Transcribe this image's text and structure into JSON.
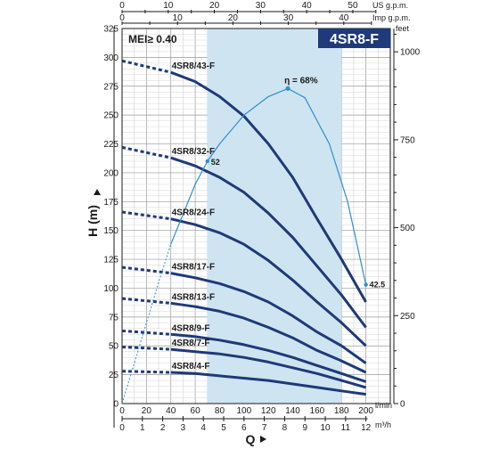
{
  "chart_data": {
    "type": "line",
    "badge": "4SR8-F",
    "mei": "MEI≥ 0.40",
    "xlabel": "Q",
    "ylabel": "H (m)",
    "x_unit": "l/min",
    "x_unit2": "m³/h",
    "top_unit1": "US g.p.m.",
    "top_unit2": "Imp g.p.m.",
    "right_unit": "feet",
    "xlim": [
      0,
      220
    ],
    "ylim": [
      0,
      325
    ],
    "x_ticks": [
      "0",
      "20",
      "40",
      "60",
      "80",
      "100",
      "120",
      "140",
      "160",
      "180",
      "200"
    ],
    "y_ticks": [
      "0",
      "25",
      "50",
      "75",
      "100",
      "125",
      "150",
      "175",
      "200",
      "225",
      "250",
      "275",
      "300",
      "325"
    ],
    "m3h_ticks": [
      "0",
      "1",
      "2",
      "3",
      "4",
      "5",
      "6",
      "7",
      "8",
      "9",
      "10",
      "11",
      "12"
    ],
    "usgpm_ticks": [
      "0",
      "10",
      "20",
      "30",
      "40",
      "50"
    ],
    "impgpm_ticks": [
      "0",
      "10",
      "20",
      "30",
      "40"
    ],
    "feet_ticks": [
      "0",
      "250",
      "500",
      "750",
      "1000"
    ],
    "recommended_range": [
      70,
      180
    ],
    "series": [
      {
        "name": "4SR8/43-F",
        "dashed": {
          "x": [
            0,
            40
          ],
          "y": [
            297,
            287
          ]
        },
        "solid": {
          "x": [
            40,
            60,
            80,
            100,
            120,
            140,
            160,
            180,
            200
          ],
          "y": [
            287,
            279,
            266,
            249,
            225,
            196,
            160,
            125,
            88
          ]
        }
      },
      {
        "name": "4SR8/32-F",
        "dashed": {
          "x": [
            0,
            40
          ],
          "y": [
            222,
            213
          ]
        },
        "solid": {
          "x": [
            40,
            60,
            80,
            100,
            120,
            140,
            160,
            180,
            200
          ],
          "y": [
            213,
            206,
            196,
            183,
            165,
            144,
            119,
            94,
            66
          ]
        }
      },
      {
        "name": "4SR8/24-F",
        "dashed": {
          "x": [
            0,
            40
          ],
          "y": [
            166,
            160
          ]
        },
        "solid": {
          "x": [
            40,
            60,
            80,
            100,
            120,
            140,
            160,
            180,
            200
          ],
          "y": [
            160,
            155,
            148,
            138,
            124,
            107,
            88,
            70,
            50
          ]
        }
      },
      {
        "name": "4SR8/17-F",
        "dashed": {
          "x": [
            0,
            40
          ],
          "y": [
            118,
            113
          ]
        },
        "solid": {
          "x": [
            40,
            60,
            80,
            100,
            120,
            140,
            160,
            180,
            200
          ],
          "y": [
            113,
            109,
            104,
            97,
            88,
            76,
            62,
            50,
            35
          ]
        }
      },
      {
        "name": "4SR8/13-F",
        "dashed": {
          "x": [
            0,
            40
          ],
          "y": [
            91,
            87
          ]
        },
        "solid": {
          "x": [
            40,
            60,
            80,
            100,
            120,
            140,
            160,
            180,
            200
          ],
          "y": [
            87,
            84,
            80,
            74,
            66,
            57,
            46,
            37,
            27
          ]
        }
      },
      {
        "name": "4SR8/9-F",
        "dashed": {
          "x": [
            0,
            40
          ],
          "y": [
            63,
            60
          ]
        },
        "solid": {
          "x": [
            40,
            60,
            80,
            100,
            120,
            140,
            160,
            180,
            200
          ],
          "y": [
            60,
            58,
            55,
            51,
            46,
            40,
            33,
            26,
            19
          ]
        }
      },
      {
        "name": "4SR8/7-F",
        "dashed": {
          "x": [
            0,
            40
          ],
          "y": [
            49,
            47
          ]
        },
        "solid": {
          "x": [
            40,
            60,
            80,
            100,
            120,
            140,
            160,
            180,
            200
          ],
          "y": [
            47,
            45,
            43,
            40,
            36,
            31,
            26,
            20,
            14
          ]
        }
      },
      {
        "name": "4SR8/4-F",
        "dashed": {
          "x": [
            0,
            40
          ],
          "y": [
            28,
            27
          ]
        },
        "solid": {
          "x": [
            40,
            60,
            80,
            100,
            120,
            140,
            160,
            180,
            200
          ],
          "y": [
            27,
            26,
            24,
            22,
            20,
            17,
            14,
            11,
            8
          ]
        }
      }
    ],
    "efficiency": {
      "dashed": {
        "x": [
          0,
          10,
          20,
          30,
          40
        ],
        "y": [
          0,
          35,
          70,
          105,
          138
        ]
      },
      "solid": {
        "x": [
          40,
          60,
          70,
          80,
          100,
          120,
          136,
          150,
          170,
          185,
          200
        ],
        "y": [
          138,
          190,
          210,
          225,
          250,
          266,
          273,
          265,
          225,
          175,
          103
        ]
      },
      "label_peak": "η = 68%",
      "peak": [
        136,
        273
      ],
      "label_start": "52",
      "start_point": [
        70,
        210
      ],
      "label_end": "42.5",
      "end_point": [
        200,
        103
      ]
    }
  }
}
